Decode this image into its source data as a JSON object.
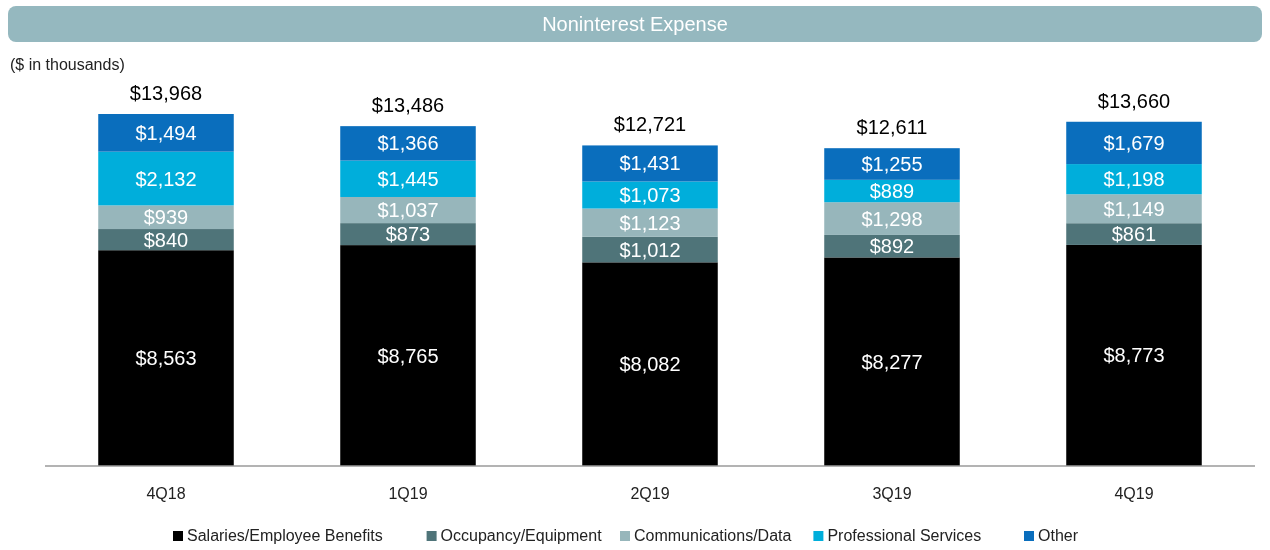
{
  "chart_data": {
    "type": "bar",
    "stacked": true,
    "title": "Noninterest Expense",
    "subtitle": "($ in thousands)",
    "categories": [
      "4Q18",
      "1Q19",
      "2Q19",
      "3Q19",
      "4Q19"
    ],
    "legend": "bottom",
    "series": [
      {
        "name": "Salaries/Employee Benefits",
        "color": "#000000",
        "values": [
          8563,
          8765,
          8082,
          8277,
          8773
        ],
        "value_labels": [
          "$8,563",
          "$8,765",
          "$8,082",
          "$8,277",
          "$8,773"
        ]
      },
      {
        "name": "Occupancy/Equipment",
        "color": "#4f7479",
        "values": [
          840,
          873,
          1012,
          892,
          861
        ],
        "value_labels": [
          "$840",
          "$873",
          "$1,012",
          "$892",
          "$861"
        ]
      },
      {
        "name": "Communications/Data",
        "color": "#97b6bb",
        "values": [
          939,
          1037,
          1123,
          1298,
          1149
        ],
        "value_labels": [
          "$939",
          "$1,037",
          "$1,123",
          "$1,298",
          "$1,149"
        ]
      },
      {
        "name": "Professional Services",
        "color": "#00aedb",
        "values": [
          2132,
          1445,
          1073,
          889,
          1198
        ],
        "value_labels": [
          "$2,132",
          "$1,445",
          "$1,073",
          "$889",
          "$1,198"
        ]
      },
      {
        "name": "Other",
        "color": "#0a6ebd",
        "values": [
          1494,
          1366,
          1431,
          1255,
          1679
        ],
        "value_labels": [
          "$1,494",
          "$1,366",
          "$1,431",
          "$1,255",
          "$1,679"
        ]
      }
    ],
    "totals": [
      "$13,968",
      "$13,486",
      "$12,721",
      "$12,611",
      "$13,660"
    ]
  }
}
